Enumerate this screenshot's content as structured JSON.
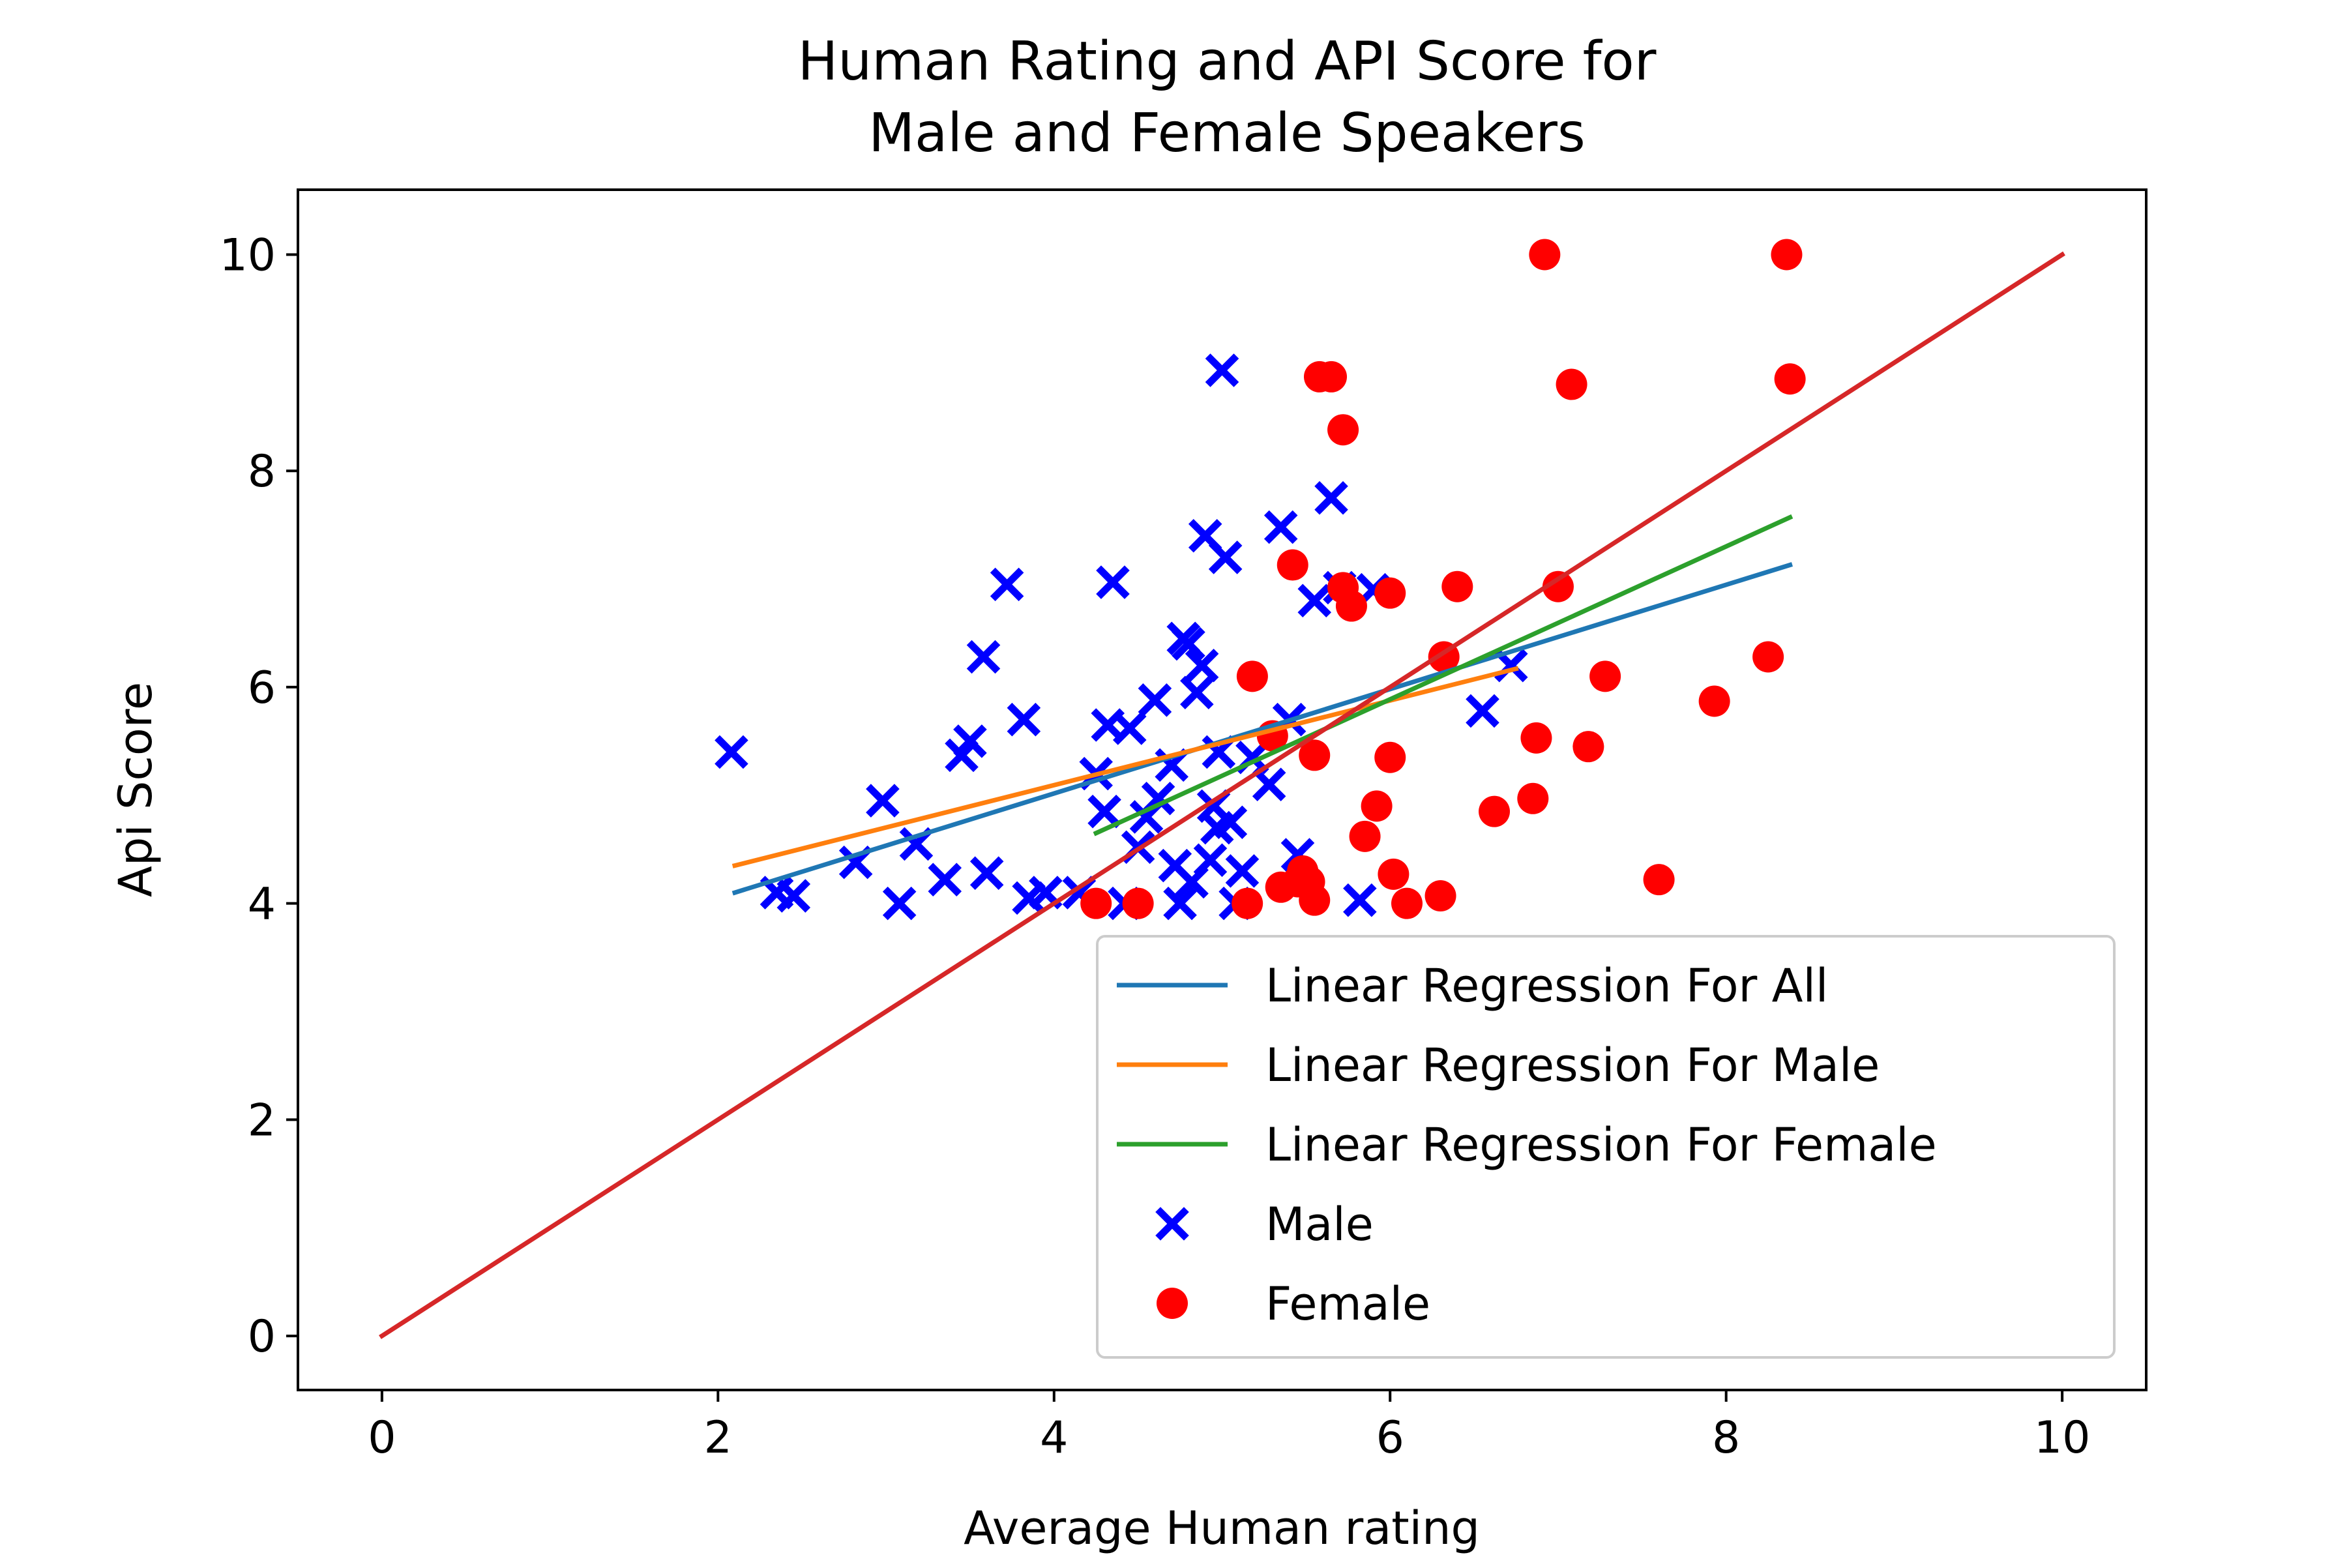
{
  "chart_data": {
    "type": "scatter",
    "title_lines": [
      "Human Rating and API Score for",
      "Male and Female Speakers"
    ],
    "xlabel": "Average Human rating",
    "ylabel": "Api Score",
    "xlim": [
      -0.5,
      10.5
    ],
    "ylim": [
      -0.5,
      10.6
    ],
    "xticks": [
      0,
      2,
      4,
      6,
      8,
      10
    ],
    "yticks": [
      0,
      2,
      4,
      6,
      8,
      10
    ],
    "grid": false,
    "legend_position": "lower-right",
    "series": [
      {
        "name": "Linear Regression For All",
        "kind": "line",
        "color": "#1f77b4",
        "x": [
          2.1,
          8.38
        ],
        "y": [
          4.1,
          7.13
        ]
      },
      {
        "name": "Linear Regression For Male",
        "kind": "line",
        "color": "#ff7f0e",
        "x": [
          2.1,
          6.75
        ],
        "y": [
          4.35,
          6.17
        ]
      },
      {
        "name": "Linear Regression For Female",
        "kind": "line",
        "color": "#2ca02c",
        "x": [
          4.25,
          8.38
        ],
        "y": [
          4.65,
          7.57
        ]
      },
      {
        "name": "",
        "kind": "line",
        "color": "#d62728",
        "x": [
          0,
          10
        ],
        "y": [
          0,
          10
        ]
      },
      {
        "name": "Male",
        "kind": "scatter",
        "marker": "x",
        "color": "#0000ff",
        "points": [
          [
            2.08,
            5.4
          ],
          [
            2.35,
            4.1
          ],
          [
            2.45,
            4.07
          ],
          [
            2.82,
            4.38
          ],
          [
            2.98,
            4.95
          ],
          [
            3.08,
            4.0
          ],
          [
            3.18,
            4.55
          ],
          [
            3.35,
            4.22
          ],
          [
            3.45,
            5.37
          ],
          [
            3.5,
            5.5
          ],
          [
            3.58,
            6.28
          ],
          [
            3.6,
            4.28
          ],
          [
            3.72,
            6.95
          ],
          [
            3.82,
            5.7
          ],
          [
            3.85,
            4.05
          ],
          [
            3.95,
            4.1
          ],
          [
            4.15,
            4.1
          ],
          [
            4.25,
            5.2
          ],
          [
            4.3,
            4.85
          ],
          [
            4.32,
            5.65
          ],
          [
            4.35,
            6.97
          ],
          [
            4.42,
            4.0
          ],
          [
            4.45,
            5.62
          ],
          [
            4.5,
            4.52
          ],
          [
            4.55,
            4.8
          ],
          [
            4.6,
            5.88
          ],
          [
            4.62,
            4.97
          ],
          [
            4.7,
            5.28
          ],
          [
            4.72,
            4.35
          ],
          [
            4.75,
            4.0
          ],
          [
            4.77,
            6.45
          ],
          [
            4.8,
            6.4
          ],
          [
            4.82,
            4.2
          ],
          [
            4.85,
            5.95
          ],
          [
            4.88,
            6.2
          ],
          [
            4.9,
            7.4
          ],
          [
            4.93,
            4.4
          ],
          [
            4.95,
            4.9
          ],
          [
            4.97,
            4.7
          ],
          [
            4.98,
            5.4
          ],
          [
            5.0,
            8.93
          ],
          [
            5.02,
            7.2
          ],
          [
            5.05,
            4.75
          ],
          [
            5.08,
            4.0
          ],
          [
            5.12,
            4.3
          ],
          [
            5.18,
            5.35
          ],
          [
            5.28,
            5.1
          ],
          [
            5.35,
            7.48
          ],
          [
            5.4,
            5.7
          ],
          [
            5.45,
            4.45
          ],
          [
            5.55,
            6.8
          ],
          [
            5.65,
            7.75
          ],
          [
            5.7,
            6.92
          ],
          [
            5.82,
            4.03
          ],
          [
            5.9,
            6.9
          ],
          [
            6.55,
            5.78
          ],
          [
            6.72,
            6.2
          ]
        ]
      },
      {
        "name": "Female",
        "kind": "scatter",
        "marker": "o",
        "color": "#ff0000",
        "points": [
          [
            4.25,
            4.0
          ],
          [
            4.5,
            4.0
          ],
          [
            5.15,
            4.0
          ],
          [
            5.18,
            6.1
          ],
          [
            5.3,
            5.55
          ],
          [
            5.35,
            4.15
          ],
          [
            5.42,
            7.13
          ],
          [
            5.45,
            4.2
          ],
          [
            5.48,
            4.3
          ],
          [
            5.52,
            4.2
          ],
          [
            5.55,
            4.03
          ],
          [
            5.55,
            5.37
          ],
          [
            5.58,
            8.87
          ],
          [
            5.65,
            8.87
          ],
          [
            5.72,
            8.38
          ],
          [
            5.72,
            6.92
          ],
          [
            5.77,
            6.75
          ],
          [
            5.85,
            4.62
          ],
          [
            5.92,
            4.9
          ],
          [
            6.0,
            6.87
          ],
          [
            6.0,
            5.35
          ],
          [
            6.02,
            4.27
          ],
          [
            6.1,
            4.0
          ],
          [
            6.3,
            4.07
          ],
          [
            6.32,
            6.28
          ],
          [
            6.4,
            6.93
          ],
          [
            6.62,
            4.85
          ],
          [
            6.85,
            4.97
          ],
          [
            6.87,
            5.53
          ],
          [
            6.92,
            10.0
          ],
          [
            7.0,
            6.93
          ],
          [
            7.08,
            8.8
          ],
          [
            7.18,
            5.45
          ],
          [
            7.28,
            6.1
          ],
          [
            7.6,
            4.22
          ],
          [
            7.93,
            5.87
          ],
          [
            8.25,
            6.28
          ],
          [
            8.36,
            10.0
          ],
          [
            8.38,
            8.85
          ]
        ]
      }
    ],
    "legend": [
      {
        "label": "Linear Regression For All",
        "kind": "line",
        "color": "#1f77b4"
      },
      {
        "label": "Linear Regression For Male",
        "kind": "line",
        "color": "#ff7f0e"
      },
      {
        "label": "Linear Regression For Female",
        "kind": "line",
        "color": "#2ca02c"
      },
      {
        "label": "Male",
        "kind": "x",
        "color": "#0000ff"
      },
      {
        "label": "Female",
        "kind": "o",
        "color": "#ff0000"
      }
    ]
  }
}
